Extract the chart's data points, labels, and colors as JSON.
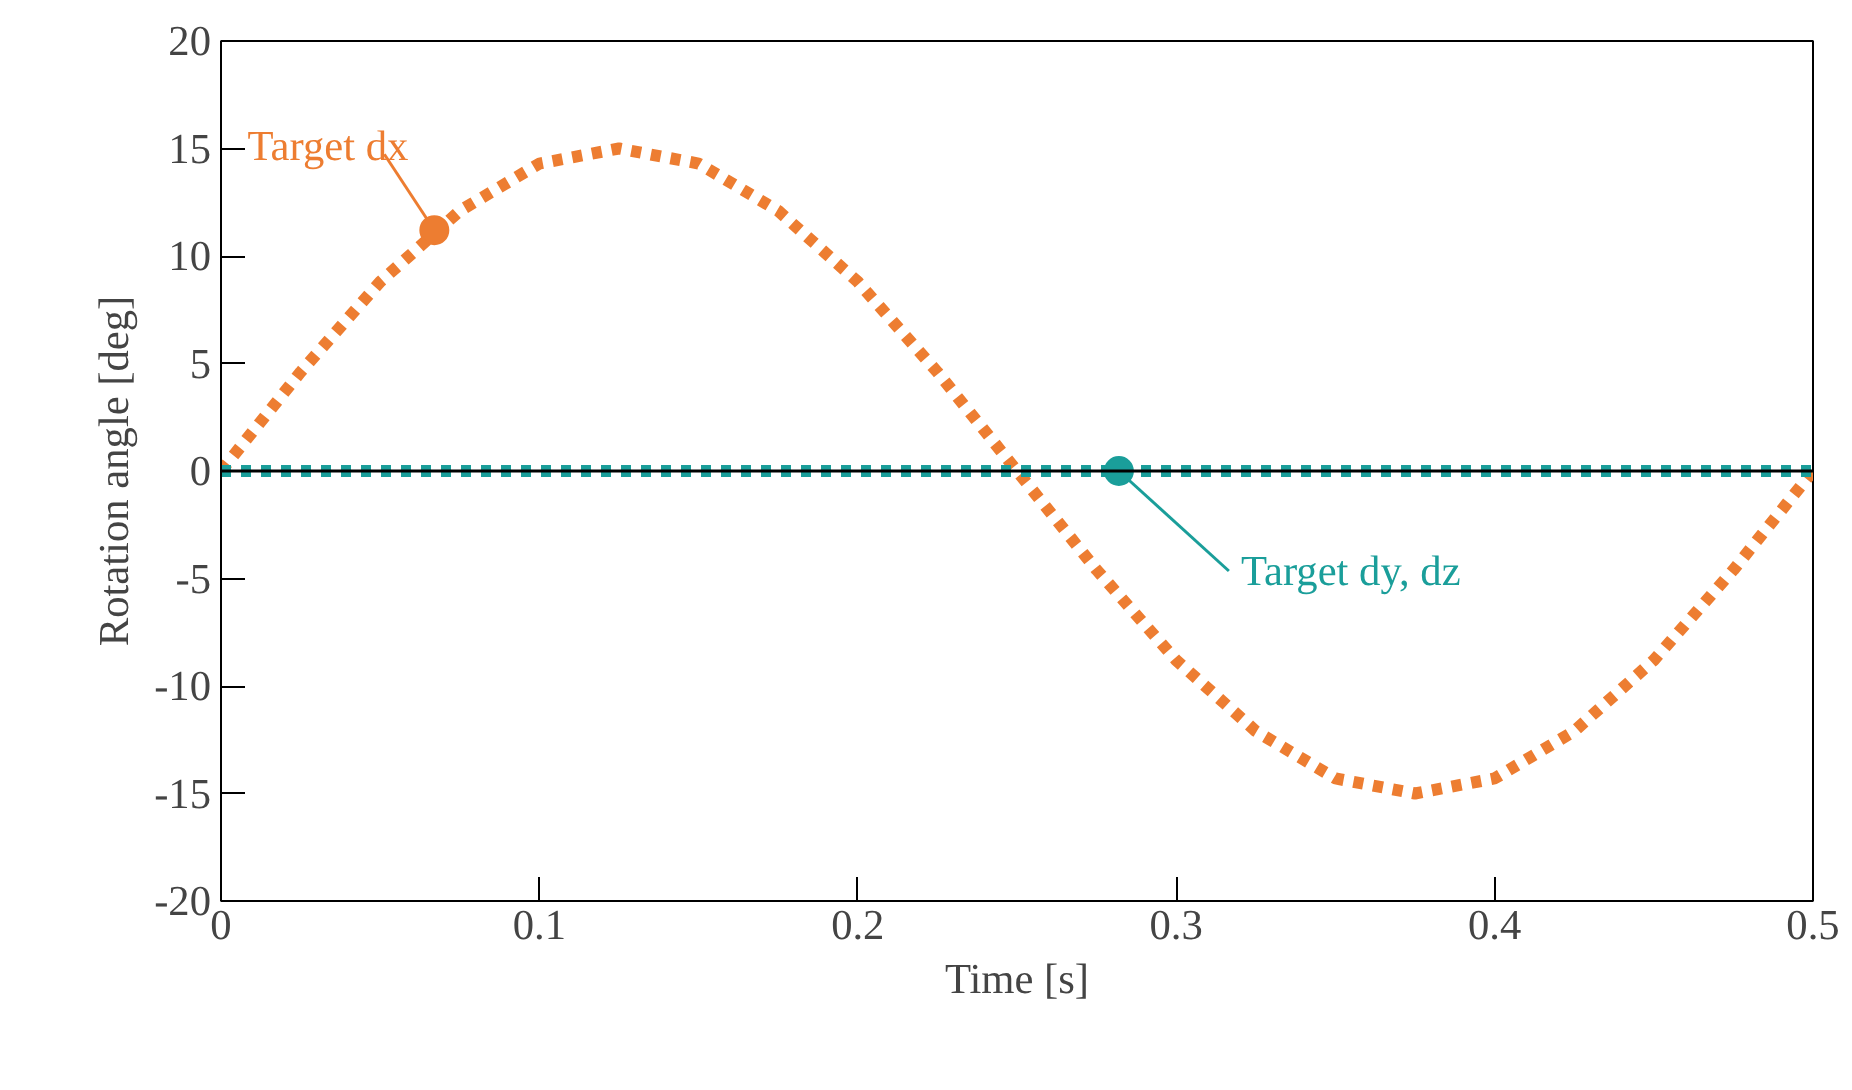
{
  "chart_data": {
    "type": "line",
    "xlabel": "Time [s]",
    "ylabel": "Rotation angle [deg]",
    "xlim": [
      0,
      0.5
    ],
    "ylim": [
      -20,
      20
    ],
    "xticks": [
      0,
      0.1,
      0.2,
      0.3,
      0.4,
      0.5
    ],
    "yticks": [
      -20,
      -15,
      -10,
      -5,
      0,
      5,
      10,
      15,
      20
    ],
    "grid": false,
    "line_style": "dotted",
    "marker": "none",
    "series": [
      {
        "color": "#ed7d31",
        "x": [
          0,
          0.025,
          0.05,
          0.075,
          0.1,
          0.125,
          0.15,
          0.175,
          0.2,
          0.225,
          0.25,
          0.275,
          0.3,
          0.325,
          0.35,
          0.375,
          0.4,
          0.425,
          0.45,
          0.475,
          0.5
        ],
        "values": [
          0,
          4.6,
          8.8,
          12.1,
          14.3,
          15,
          14.3,
          12.1,
          8.8,
          4.6,
          0,
          -4.6,
          -8.8,
          -12.1,
          -14.3,
          -15,
          -14.3,
          -12.1,
          -8.8,
          -4.6,
          0
        ]
      },
      {
        "color": "#1a9e9a",
        "x": [
          0,
          0.5
        ],
        "values": [
          0,
          0
        ]
      }
    ],
    "ref_lines": [
      {
        "axis": "y",
        "value": 0,
        "color": "#000000"
      }
    ],
    "annotations": [
      {
        "text": "Target dx",
        "x": 0.067,
        "y": 11.2
      },
      {
        "text": "Target dy, dz",
        "x": 0.282,
        "y": 0
      }
    ]
  }
}
